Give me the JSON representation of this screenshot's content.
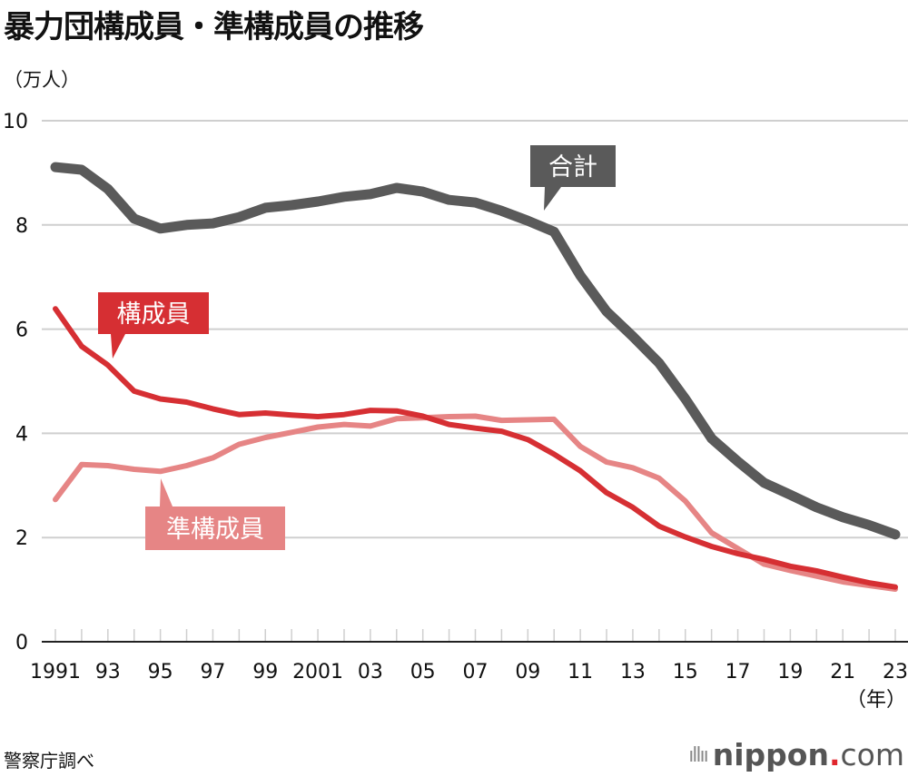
{
  "title": "暴力団構成員・準構成員の推移",
  "unit_label": "（万人）",
  "source": "警察庁調べ",
  "logo": {
    "bars": "ıllıı",
    "name": "nippon",
    "dot": ".",
    "tld": "com"
  },
  "chart_data": {
    "type": "line",
    "title": "暴力団構成員・準構成員の推移",
    "ylabel": "（万人）",
    "xlabel": "（年）",
    "ylim": [
      0,
      10
    ],
    "yticks": [
      0,
      2,
      4,
      6,
      8,
      10
    ],
    "xlim": [
      1991,
      2023
    ],
    "x": [
      1991,
      1992,
      1993,
      1994,
      1995,
      1996,
      1997,
      1998,
      1999,
      2000,
      2001,
      2002,
      2003,
      2004,
      2005,
      2006,
      2007,
      2008,
      2009,
      2010,
      2011,
      2012,
      2013,
      2014,
      2015,
      2016,
      2017,
      2018,
      2019,
      2020,
      2021,
      2022,
      2023
    ],
    "xtick_labels": [
      {
        "year": 1991,
        "label": "1991"
      },
      {
        "year": 1993,
        "label": "93"
      },
      {
        "year": 1995,
        "label": "95"
      },
      {
        "year": 1997,
        "label": "97"
      },
      {
        "year": 1999,
        "label": "99"
      },
      {
        "year": 2001,
        "label": "2001"
      },
      {
        "year": 2003,
        "label": "03"
      },
      {
        "year": 2005,
        "label": "05"
      },
      {
        "year": 2007,
        "label": "07"
      },
      {
        "year": 2009,
        "label": "09"
      },
      {
        "year": 2011,
        "label": "11"
      },
      {
        "year": 2013,
        "label": "13"
      },
      {
        "year": 2015,
        "label": "15"
      },
      {
        "year": 2017,
        "label": "17"
      },
      {
        "year": 2019,
        "label": "19"
      },
      {
        "year": 2021,
        "label": "21"
      },
      {
        "year": 2023,
        "label": "23"
      }
    ],
    "grid": true,
    "series": [
      {
        "name": "合計",
        "color": "#5a5a5a",
        "label_year": 2009.3,
        "values": [
          9.11,
          9.06,
          8.69,
          8.12,
          7.93,
          8.0,
          8.03,
          8.15,
          8.33,
          8.38,
          8.45,
          8.54,
          8.59,
          8.71,
          8.64,
          8.48,
          8.43,
          8.27,
          8.08,
          7.87,
          7.03,
          6.34,
          5.86,
          5.35,
          4.66,
          3.9,
          3.46,
          3.05,
          2.82,
          2.58,
          2.39,
          2.24,
          2.06
        ]
      },
      {
        "name": "構成員",
        "color": "#d62f33",
        "label_year": 1993.2,
        "values": [
          6.39,
          5.67,
          5.31,
          4.81,
          4.66,
          4.6,
          4.47,
          4.36,
          4.39,
          4.35,
          4.32,
          4.36,
          4.44,
          4.43,
          4.33,
          4.17,
          4.1,
          4.04,
          3.88,
          3.6,
          3.28,
          2.86,
          2.58,
          2.22,
          2.01,
          1.83,
          1.69,
          1.58,
          1.45,
          1.36,
          1.24,
          1.13,
          1.05
        ]
      },
      {
        "name": "準構成員",
        "color": "#e68585",
        "label_year": 1995.2,
        "values": [
          2.73,
          3.4,
          3.38,
          3.31,
          3.27,
          3.38,
          3.53,
          3.79,
          3.92,
          4.02,
          4.12,
          4.17,
          4.14,
          4.28,
          4.3,
          4.32,
          4.33,
          4.25,
          4.26,
          4.27,
          3.75,
          3.45,
          3.34,
          3.14,
          2.7,
          2.09,
          1.79,
          1.49,
          1.37,
          1.26,
          1.15,
          1.08,
          1.01
        ]
      }
    ],
    "annotations": [
      "合計",
      "構成員",
      "準構成員"
    ]
  }
}
